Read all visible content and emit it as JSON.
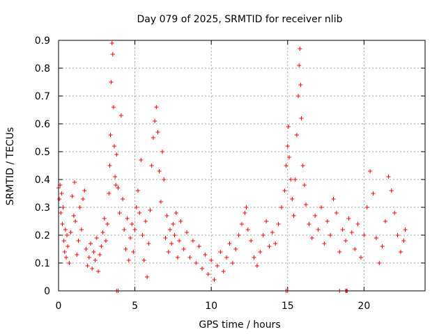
{
  "chart_data": {
    "type": "scatter",
    "title": "Day 079 of 2025, SRMTID for receiver nlib",
    "xlabel": "GPS time / hours",
    "ylabel": "SRMTID / TECUs",
    "xlim": [
      0,
      24
    ],
    "ylim": [
      0,
      0.9
    ],
    "xticks": [
      0,
      5,
      10,
      15,
      20
    ],
    "xtick_labels": [
      "0",
      "5",
      "10",
      "15",
      "20"
    ],
    "yticks": [
      0,
      0.1,
      0.2,
      0.3,
      0.4,
      0.5,
      0.6,
      0.7,
      0.8,
      0.9
    ],
    "ytick_labels": [
      "0",
      "0.1",
      "0.2",
      "0.3",
      "0.4",
      "0.5",
      "0.6",
      "0.7",
      "0.8",
      "0.9"
    ],
    "grid": true,
    "marker": "+",
    "series_color": "#ff0000",
    "series": [
      {
        "name": "SRMTID",
        "points": [
          [
            0.0,
            0.37
          ],
          [
            0.05,
            0.33
          ],
          [
            0.1,
            0.38
          ],
          [
            0.15,
            0.28
          ],
          [
            0.2,
            0.35
          ],
          [
            0.25,
            0.24
          ],
          [
            0.3,
            0.3
          ],
          [
            0.35,
            0.18
          ],
          [
            0.4,
            0.14
          ],
          [
            0.45,
            0.22
          ],
          [
            0.5,
            0.12
          ],
          [
            0.55,
            0.2
          ],
          [
            0.6,
            0.16
          ],
          [
            0.7,
            0.1
          ],
          [
            0.8,
            0.21
          ],
          [
            0.9,
            0.34
          ],
          [
            1.0,
            0.27
          ],
          [
            1.05,
            0.39
          ],
          [
            1.1,
            0.25
          ],
          [
            1.2,
            0.13
          ],
          [
            1.3,
            0.18
          ],
          [
            1.4,
            0.3
          ],
          [
            1.5,
            0.22
          ],
          [
            1.6,
            0.33
          ],
          [
            1.7,
            0.36
          ],
          [
            1.8,
            0.15
          ],
          [
            1.9,
            0.09
          ],
          [
            2.0,
            0.12
          ],
          [
            2.1,
            0.17
          ],
          [
            2.2,
            0.08
          ],
          [
            2.3,
            0.14
          ],
          [
            2.4,
            0.11
          ],
          [
            2.5,
            0.19
          ],
          [
            2.6,
            0.07
          ],
          [
            2.7,
            0.13
          ],
          [
            2.8,
            0.16
          ],
          [
            2.9,
            0.21
          ],
          [
            3.0,
            0.26
          ],
          [
            3.1,
            0.18
          ],
          [
            3.2,
            0.24
          ],
          [
            3.3,
            0.35
          ],
          [
            3.35,
            0.45
          ],
          [
            3.4,
            0.56
          ],
          [
            3.45,
            0.75
          ],
          [
            3.5,
            0.89
          ],
          [
            3.55,
            0.85
          ],
          [
            3.6,
            0.66
          ],
          [
            3.65,
            0.52
          ],
          [
            3.7,
            0.41
          ],
          [
            3.75,
            0.38
          ],
          [
            3.8,
            0.49
          ],
          [
            3.9,
            0.37
          ],
          [
            4.0,
            0.28
          ],
          [
            4.1,
            0.63
          ],
          [
            4.2,
            0.33
          ],
          [
            4.3,
            0.22
          ],
          [
            4.4,
            0.15
          ],
          [
            4.5,
            0.26
          ],
          [
            4.6,
            0.11
          ],
          [
            4.7,
            0.19
          ],
          [
            4.8,
            0.24
          ],
          [
            4.9,
            0.14
          ],
          [
            5.0,
            0.22
          ],
          [
            5.1,
            0.3
          ],
          [
            5.2,
            0.36
          ],
          [
            5.3,
            0.28
          ],
          [
            5.4,
            0.47
          ],
          [
            5.5,
            0.2
          ],
          [
            5.6,
            0.11
          ],
          [
            5.7,
            0.25
          ],
          [
            5.8,
            0.05
          ],
          [
            5.9,
            0.17
          ],
          [
            6.0,
            0.29
          ],
          [
            6.1,
            0.45
          ],
          [
            6.2,
            0.55
          ],
          [
            6.3,
            0.61
          ],
          [
            6.4,
            0.66
          ],
          [
            6.5,
            0.57
          ],
          [
            6.6,
            0.43
          ],
          [
            6.7,
            0.32
          ],
          [
            6.8,
            0.5
          ],
          [
            6.9,
            0.4
          ],
          [
            7.0,
            0.19
          ],
          [
            7.1,
            0.27
          ],
          [
            7.2,
            0.14
          ],
          [
            7.3,
            0.22
          ],
          [
            7.4,
            0.17
          ],
          [
            7.5,
            0.24
          ],
          [
            7.6,
            0.2
          ],
          [
            7.7,
            0.28
          ],
          [
            7.8,
            0.12
          ],
          [
            7.9,
            0.18
          ],
          [
            8.0,
            0.25
          ],
          [
            8.2,
            0.15
          ],
          [
            8.4,
            0.21
          ],
          [
            8.6,
            0.12
          ],
          [
            8.8,
            0.18
          ],
          [
            9.0,
            0.1
          ],
          [
            9.2,
            0.16
          ],
          [
            9.4,
            0.08
          ],
          [
            9.6,
            0.13
          ],
          [
            9.8,
            0.06
          ],
          [
            10.0,
            0.11
          ],
          [
            10.2,
            0.04
          ],
          [
            10.4,
            0.09
          ],
          [
            10.6,
            0.14
          ],
          [
            10.8,
            0.07
          ],
          [
            11.0,
            0.12
          ],
          [
            11.2,
            0.17
          ],
          [
            11.4,
            0.1
          ],
          [
            11.6,
            0.15
          ],
          [
            11.8,
            0.2
          ],
          [
            12.0,
            0.24
          ],
          [
            12.2,
            0.28
          ],
          [
            12.3,
            0.3
          ],
          [
            12.4,
            0.22
          ],
          [
            12.6,
            0.18
          ],
          [
            12.8,
            0.12
          ],
          [
            13.0,
            0.09
          ],
          [
            13.2,
            0.14
          ],
          [
            13.4,
            0.2
          ],
          [
            13.6,
            0.25
          ],
          [
            13.8,
            0.16
          ],
          [
            14.0,
            0.21
          ],
          [
            14.2,
            0.17
          ],
          [
            14.4,
            0.24
          ],
          [
            14.6,
            0.3
          ],
          [
            14.8,
            0.36
          ],
          [
            14.9,
            0.45
          ],
          [
            15.0,
            0.52
          ],
          [
            15.05,
            0.59
          ],
          [
            15.1,
            0.48
          ],
          [
            15.2,
            0.4
          ],
          [
            15.3,
            0.33
          ],
          [
            15.4,
            0.27
          ],
          [
            15.5,
            0.4
          ],
          [
            15.6,
            0.56
          ],
          [
            15.7,
            0.7
          ],
          [
            15.75,
            0.81
          ],
          [
            15.8,
            0.87
          ],
          [
            15.85,
            0.74
          ],
          [
            15.9,
            0.62
          ],
          [
            16.0,
            0.45
          ],
          [
            16.1,
            0.38
          ],
          [
            16.2,
            0.31
          ],
          [
            16.4,
            0.24
          ],
          [
            16.6,
            0.19
          ],
          [
            16.8,
            0.27
          ],
          [
            17.0,
            0.22
          ],
          [
            17.2,
            0.3
          ],
          [
            17.4,
            0.17
          ],
          [
            17.6,
            0.25
          ],
          [
            17.8,
            0.2
          ],
          [
            18.0,
            0.33
          ],
          [
            18.2,
            0.28
          ],
          [
            18.4,
            0.14
          ],
          [
            18.6,
            0.22
          ],
          [
            18.8,
            0.18
          ],
          [
            19.0,
            0.26
          ],
          [
            19.2,
            0.21
          ],
          [
            19.4,
            0.15
          ],
          [
            19.6,
            0.24
          ],
          [
            19.8,
            0.12
          ],
          [
            20.0,
            0.2
          ],
          [
            20.2,
            0.3
          ],
          [
            20.4,
            0.43
          ],
          [
            20.6,
            0.35
          ],
          [
            20.8,
            0.19
          ],
          [
            21.0,
            0.1
          ],
          [
            21.2,
            0.16
          ],
          [
            21.4,
            0.25
          ],
          [
            21.6,
            0.41
          ],
          [
            21.8,
            0.36
          ],
          [
            22.0,
            0.28
          ],
          [
            22.2,
            0.2
          ],
          [
            22.4,
            0.14
          ],
          [
            22.6,
            0.18
          ],
          [
            22.7,
            0.22
          ],
          [
            3.8,
            0.0
          ],
          [
            3.9,
            0.0
          ],
          [
            14.9,
            0.0
          ],
          [
            15.0,
            0.0
          ],
          [
            18.4,
            0.0
          ],
          [
            18.8,
            0.0
          ],
          [
            18.85,
            0.0
          ],
          [
            18.9,
            0.0
          ]
        ]
      }
    ]
  }
}
